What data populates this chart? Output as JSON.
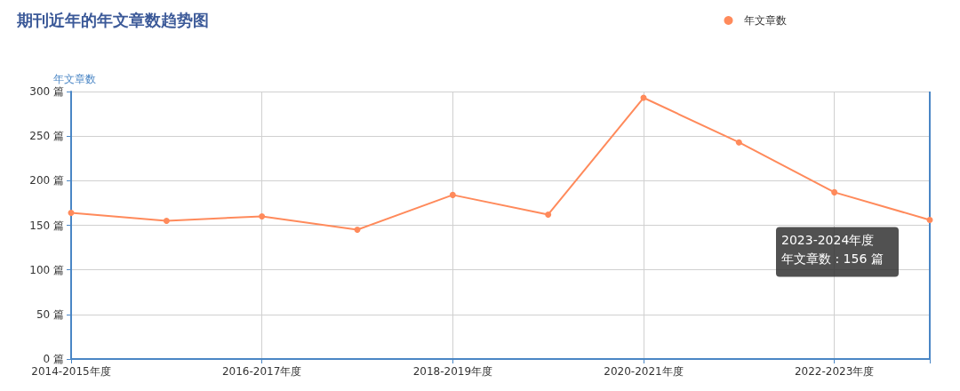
{
  "chart_data": {
    "type": "line",
    "title": "期刊近年的年文章数趋势图",
    "ylabel": "年文章数",
    "categories": [
      "2014-2015年度",
      null,
      "2016-2017年度",
      null,
      "2018-2019年度",
      null,
      "2020-2021年度",
      null,
      "2022-2023年度",
      null
    ],
    "series": [
      {
        "name": "年文章数",
        "color": "#ff8a5b",
        "values": [
          164,
          155,
          160,
          145,
          184,
          162,
          293,
          243,
          187,
          156
        ]
      }
    ],
    "ylim": [
      0,
      300
    ],
    "yticks": [
      {
        "value": 0,
        "label": "0 篇"
      },
      {
        "value": 50,
        "label": "50 篇"
      },
      {
        "value": 100,
        "label": "100 篇"
      },
      {
        "value": 150,
        "label": "150 篇"
      },
      {
        "value": 200,
        "label": "200 篇"
      },
      {
        "value": 250,
        "label": "250 篇"
      },
      {
        "value": 300,
        "label": "300 篇"
      }
    ],
    "annotations": [
      "2023-2024年度",
      "年文章数 : 156 篇"
    ],
    "grid": true,
    "legend": "top right",
    "marker": "circle",
    "line_style": "solid"
  }
}
